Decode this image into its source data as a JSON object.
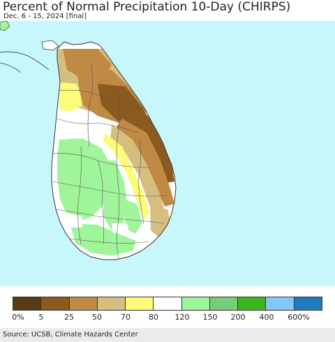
{
  "header": {
    "title": "Percent of Normal Precipitation 10-Day (CHIRPS)",
    "subtitle": "Dec. 6 - 15, 2024 [final]"
  },
  "map": {
    "region": "Sri Lanka",
    "ocean_color": "#c8f7fb",
    "land_base_color": "#ffffff",
    "boundary_color": "#555555"
  },
  "legend": {
    "colors": [
      "#5a3a12",
      "#8b5a1e",
      "#c08a45",
      "#d4bf80",
      "#fcfc78",
      "#ffffff",
      "#a0f49a",
      "#78cc78",
      "#3cb41e",
      "#82c8fa",
      "#1e7dbe"
    ],
    "labels": [
      "0%",
      "5",
      "25",
      "50",
      "70",
      "80",
      "120",
      "150",
      "200",
      "400",
      "600%"
    ]
  },
  "footer": {
    "source": "Source: UCSB, Climate Hazards Center"
  }
}
